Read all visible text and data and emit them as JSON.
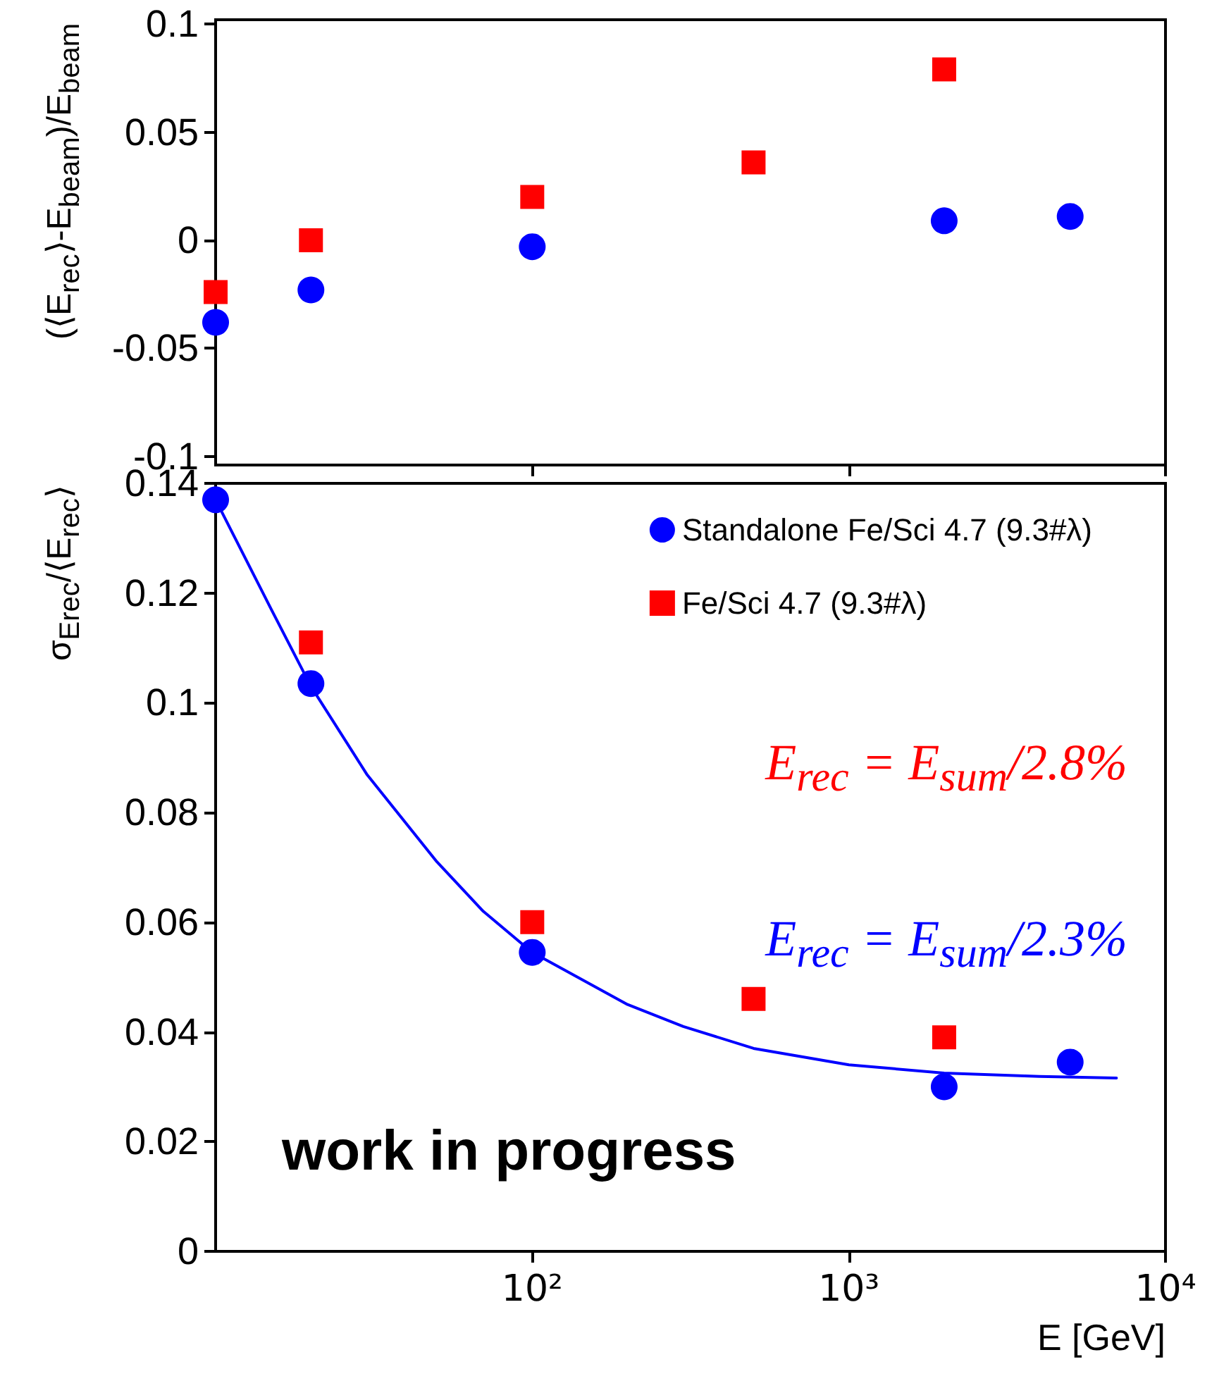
{
  "chart_data": [
    {
      "type": "scatter",
      "ylabel": "(⟨E$_{rec}$⟩-E$_{beam}$)/E$_{beam}$",
      "log": "x",
      "xlim": [
        10,
        10000
      ],
      "xticks": [
        {
          "value": 100,
          "label": null
        },
        {
          "value": 1000,
          "label": null
        },
        {
          "value": 10000,
          "label": null
        }
      ],
      "ylim": [
        -0.104,
        0.102
      ],
      "yticks": [
        -0.1,
        -0.05,
        0,
        0.05,
        0.1
      ],
      "tick_labels": "y",
      "grid": false,
      "legend": false,
      "series": [
        {
          "color": "#0000ff",
          "marker": "circle",
          "x": [
            10,
            20,
            100,
            2000,
            5000
          ],
          "values": [
            -0.038,
            -0.023,
            -0.003,
            0.009,
            0.011
          ]
        },
        {
          "color": "#ff0000",
          "marker": "square",
          "x": [
            10,
            20,
            100,
            500,
            2000
          ],
          "values": [
            -0.024,
            0.0,
            0.02,
            0.036,
            0.079
          ]
        }
      ]
    },
    {
      "type": "scatter",
      "xlabel": "E [GeV]",
      "ylabel": "σ$_{Erec}$/⟨E$_{rec}$⟩",
      "log": "x",
      "xlim": [
        10,
        10000
      ],
      "xticks": [
        {
          "value": 100,
          "label": "10²"
        },
        {
          "value": 1000,
          "label": "10³"
        },
        {
          "value": 10000,
          "label": "10⁴"
        }
      ],
      "ylim": [
        0,
        0.14
      ],
      "yticks": [
        0,
        0.02,
        0.04,
        0.06,
        0.08,
        0.1,
        0.12,
        0.14
      ],
      "grid": false,
      "legend": "top right",
      "annotations": [
        "work in progress",
        "E$_{rec}$ = E$_{sum}$/2.8%",
        "E$_{rec}$ = E$_{sum}$/2.3%"
      ],
      "series": [
        {
          "name": "Standalone Fe/Sci 4.7 (9.3#λ)",
          "color": "#0000ff",
          "marker": "circle",
          "x": [
            10,
            20,
            100,
            2000,
            5000
          ],
          "values": [
            0.137,
            0.1035,
            0.0545,
            0.03,
            0.0345
          ]
        },
        {
          "name": "Fe/Sci 4.7 (9.3#λ)",
          "color": "#ff0000",
          "marker": "square",
          "x": [
            20,
            100,
            500,
            2000
          ],
          "values": [
            0.111,
            0.06,
            0.046,
            0.039
          ]
        },
        {
          "type": "line",
          "color": "#0000ff",
          "marker": "none",
          "x": [
            10,
            15,
            20,
            30,
            50,
            70,
            100,
            200,
            300,
            500,
            1000,
            2000,
            4000,
            7000
          ],
          "values": [
            0.137,
            0.117,
            0.103,
            0.087,
            0.071,
            0.062,
            0.0545,
            0.045,
            0.041,
            0.037,
            0.034,
            0.0325,
            0.0319,
            0.0316
          ]
        }
      ]
    }
  ]
}
